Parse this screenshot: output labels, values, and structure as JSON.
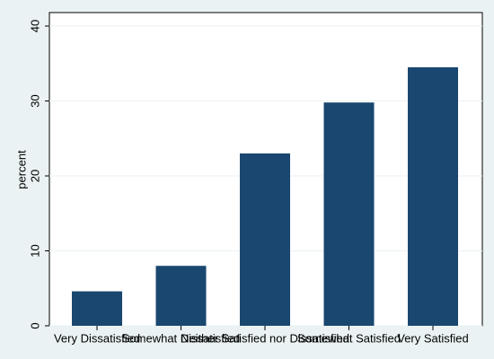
{
  "chart_data": {
    "type": "bar",
    "y_label": "percent",
    "categories": [
      "Very Dissatisfied",
      "Somewhat Dissatisfied",
      "Neither Satisfied nor Dissatisfied",
      "Somewhat Satisfied",
      "Very Satisfied"
    ],
    "values": [
      4.6,
      8.0,
      23.0,
      29.8,
      34.5
    ],
    "color": "#1a476f",
    "ylim": [
      0,
      41.8
    ],
    "yticks": [
      0,
      10,
      20,
      30,
      40
    ],
    "grid": true
  }
}
